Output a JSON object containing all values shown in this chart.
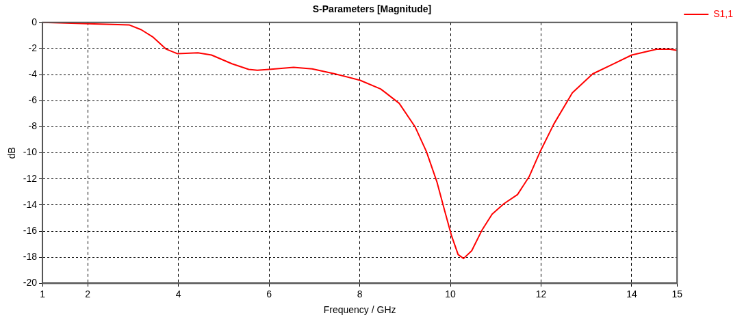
{
  "chart_data": {
    "type": "line",
    "title": "S-Parameters [Magnitude]",
    "xlabel": "Frequency / GHz",
    "ylabel": "dB",
    "xlim": [
      1,
      15
    ],
    "xticks": [
      1,
      2,
      4,
      6,
      8,
      10,
      12,
      14,
      15
    ],
    "ylim": [
      -20,
      0
    ],
    "yticks": [
      -20,
      -18,
      -16,
      -14,
      -12,
      -10,
      -8,
      -6,
      -4,
      -2,
      0
    ],
    "grid": true,
    "legend": "top right",
    "marker": "none",
    "line_style": "solid",
    "series": [
      {
        "name": "S1,1",
        "color": "#ff0000",
        "x": [
          1,
          2.92,
          3.18,
          3.43,
          3.73,
          3.98,
          4.43,
          4.73,
          5.18,
          5.55,
          5.74,
          6.0,
          6.54,
          6.95,
          7.45,
          8.01,
          8.46,
          8.57,
          8.87,
          9.22,
          9.47,
          9.7,
          9.87,
          10.02,
          10.17,
          10.29,
          10.47,
          10.7,
          10.92,
          11.18,
          11.48,
          11.74,
          11.98,
          12.28,
          12.69,
          13.14,
          13.6,
          14.0,
          14.55,
          14.85,
          15
        ],
        "values": [
          0,
          -0.2,
          -0.56,
          -1.1,
          -2.05,
          -2.4,
          -2.33,
          -2.5,
          -3.17,
          -3.6,
          -3.67,
          -3.6,
          -3.44,
          -3.56,
          -3.94,
          -4.44,
          -5.1,
          -5.39,
          -6.2,
          -8,
          -9.9,
          -12.2,
          -14.4,
          -16.3,
          -17.8,
          -18.1,
          -17.5,
          -15.9,
          -14.7,
          -13.9,
          -13.2,
          -11.8,
          -9.9,
          -7.8,
          -5.4,
          -3.94,
          -3.17,
          -2.5,
          -2.05,
          -2.05,
          -2.15
        ]
      }
    ]
  }
}
